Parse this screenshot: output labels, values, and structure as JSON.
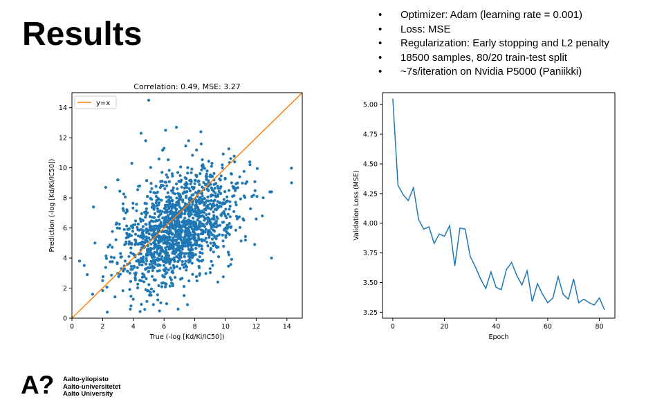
{
  "slide": {
    "title": "Results",
    "bullets": [
      "Optimizer: Adam (learning rate = 0.001)",
      "Loss: MSE",
      "Regularization: Early stopping and L2 penalty",
      "18500 samples, 80/20 train-test split",
      "~7s/iteration on Nvidia P5000 (Paniikki)"
    ]
  },
  "logo": {
    "mark": "A?",
    "lines": [
      "Aalto-yliopisto",
      "Aalto-universitetet",
      "Aalto University"
    ]
  },
  "chart_data": [
    {
      "type": "scatter",
      "title": "Correlation: 0.49, MSE: 3.27",
      "xlabel": "True (-log [Kd/Ki/IC50])",
      "ylabel": "Prediction (-log [Kd/Ki/IC50])",
      "xlim": [
        0,
        15
      ],
      "ylim": [
        0,
        15
      ],
      "xticks": [
        0,
        2,
        4,
        6,
        8,
        10,
        12,
        14
      ],
      "yticks": [
        0,
        2,
        4,
        6,
        8,
        10,
        12,
        14
      ],
      "legend": {
        "position": "top-left",
        "entries": [
          "y=x"
        ]
      },
      "reference_line": {
        "name": "y=x",
        "x": [
          0,
          15
        ],
        "y": [
          0,
          15
        ],
        "color": "#ff7f0e"
      },
      "point_color": "#1f77b4",
      "grid": false,
      "series": [
        {
          "points": [
            [
              5.0,
              14.5
            ],
            [
              4.5,
              12.3
            ],
            [
              6.1,
              12.5
            ],
            [
              6.8,
              12.7
            ],
            [
              8.4,
              12.4
            ],
            [
              6.0,
              11.3
            ],
            [
              4.8,
              11.8
            ],
            [
              10.6,
              10.4
            ],
            [
              11.6,
              10.2
            ],
            [
              14.3,
              9.0
            ],
            [
              13.0,
              8.4
            ],
            [
              12.4,
              6.8
            ],
            [
              13.0,
              4.0
            ],
            [
              11.3,
              5.2
            ],
            [
              1.5,
              5.0
            ],
            [
              0.5,
              3.8
            ],
            [
              2.3,
              0.4
            ],
            [
              3.8,
              0.6
            ],
            [
              5.3,
              0.9
            ],
            [
              7.3,
              1.5
            ],
            [
              2.2,
              8.7
            ],
            [
              1.4,
              7.4
            ],
            [
              3.9,
              10.3
            ],
            [
              12.0,
              6.6
            ],
            [
              11.9,
              4.9
            ],
            [
              1.0,
              2.9
            ],
            [
              0.8,
              3.5
            ],
            [
              2.0,
              2.5
            ],
            [
              9.5,
              2.4
            ],
            [
              9.0,
              3.3
            ],
            [
              3.0,
              9.2
            ],
            [
              7.6,
              11.8
            ],
            [
              9.8,
              10.0
            ]
          ]
        }
      ]
    },
    {
      "type": "line",
      "title": "",
      "xlabel": "Epoch",
      "ylabel": "Validation Loss (MSE)",
      "xlim": [
        -4,
        86
      ],
      "ylim": [
        3.2,
        5.1
      ],
      "xticks": [
        0,
        20,
        40,
        60,
        80
      ],
      "yticks": [
        3.25,
        3.5,
        3.75,
        4.0,
        4.25,
        4.5,
        4.75,
        5.0
      ],
      "ytick_labels": [
        "3.25",
        "3.50",
        "3.75",
        "4.00",
        "4.25",
        "4.50",
        "4.75",
        "5.00"
      ],
      "line_color": "#1f77b4",
      "grid": false,
      "series": [
        {
          "x": [
            0,
            2,
            4,
            6,
            8,
            10,
            12,
            14,
            16,
            18,
            20,
            22,
            24,
            26,
            28,
            30,
            32,
            34,
            36,
            38,
            40,
            42,
            44,
            46,
            48,
            50,
            52,
            54,
            56,
            58,
            60,
            62,
            64,
            66,
            68,
            70,
            72,
            74,
            76,
            78,
            80,
            82
          ],
          "values": [
            5.05,
            4.32,
            4.24,
            4.19,
            4.3,
            4.03,
            3.95,
            3.97,
            3.83,
            3.91,
            3.89,
            3.98,
            3.64,
            3.96,
            3.95,
            3.72,
            3.63,
            3.53,
            3.45,
            3.59,
            3.46,
            3.44,
            3.61,
            3.67,
            3.56,
            3.48,
            3.6,
            3.34,
            3.49,
            3.4,
            3.33,
            3.37,
            3.55,
            3.4,
            3.36,
            3.53,
            3.33,
            3.36,
            3.33,
            3.31,
            3.37,
            3.27
          ]
        }
      ]
    }
  ]
}
